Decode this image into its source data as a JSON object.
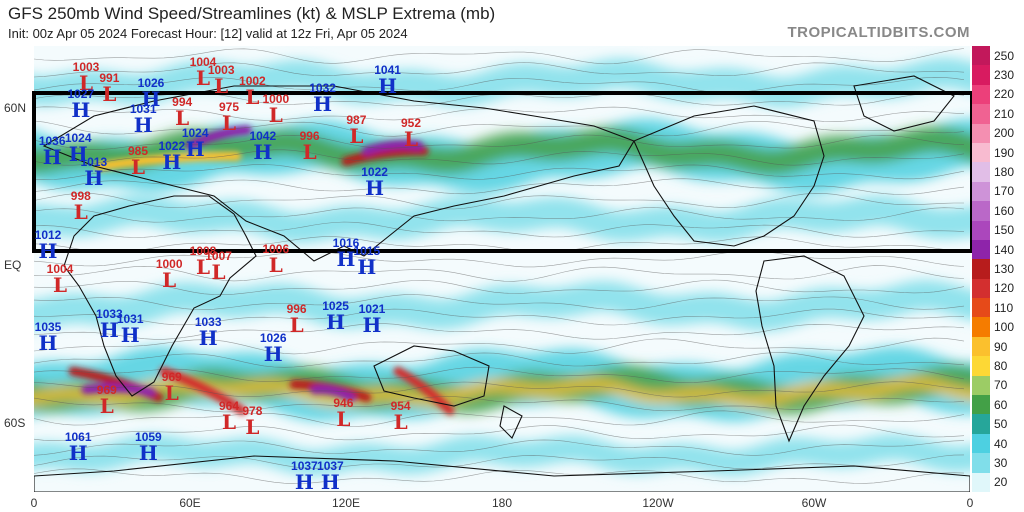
{
  "title": "GFS 250mb Wind Speed/Streamlines (kt) & MSLP Extrema (mb)",
  "subtitle": "Init: 00z Apr 05 2024   Forecast Hour: [12]   valid at 12z Fri, Apr 05 2024",
  "brand": "TROPICALTIDBITS.COM",
  "lat_labels": [
    "60N",
    "EQ",
    "60S"
  ],
  "lon_labels": [
    "0",
    "60E",
    "120E",
    "180",
    "120W",
    "60W",
    "0"
  ],
  "colorbar": {
    "labels": [
      "250",
      "230",
      "220",
      "210",
      "200",
      "190",
      "180",
      "170",
      "160",
      "150",
      "140",
      "130",
      "120",
      "110",
      "100",
      "90",
      "80",
      "70",
      "60",
      "50",
      "40",
      "30",
      "20"
    ],
    "colors": [
      "#c2185b",
      "#d81b60",
      "#ec407a",
      "#f06292",
      "#f48fb1",
      "#f8bbd0",
      "#e1bee7",
      "#ce93d8",
      "#ba68c8",
      "#ab47bc",
      "#8e24aa",
      "#b71c1c",
      "#d32f2f",
      "#e64a19",
      "#f57c00",
      "#fbc02d",
      "#fdd835",
      "#9ccc65",
      "#43a047",
      "#26a69a",
      "#4dd0e1",
      "#80deea",
      "#e0f7fa"
    ]
  },
  "pressure_extrema": [
    {
      "type": "L",
      "value": "1003",
      "lon": 20,
      "lat": 72
    },
    {
      "type": "L",
      "value": "991",
      "lon": 29,
      "lat": 68
    },
    {
      "type": "H",
      "value": "1026",
      "lon": 45,
      "lat": 66
    },
    {
      "type": "L",
      "value": "1004",
      "lon": 65,
      "lat": 74
    },
    {
      "type": "L",
      "value": "1003",
      "lon": 72,
      "lat": 71
    },
    {
      "type": "H",
      "value": "1027",
      "lon": 18,
      "lat": 62
    },
    {
      "type": "H",
      "value": "1031",
      "lon": 42,
      "lat": 56
    },
    {
      "type": "L",
      "value": "994",
      "lon": 57,
      "lat": 59
    },
    {
      "type": "L",
      "value": "975",
      "lon": 75,
      "lat": 57
    },
    {
      "type": "L",
      "value": "1002",
      "lon": 84,
      "lat": 67
    },
    {
      "type": "L",
      "value": "1000",
      "lon": 93,
      "lat": 60
    },
    {
      "type": "H",
      "value": "1032",
      "lon": 111,
      "lat": 64
    },
    {
      "type": "H",
      "value": "1041",
      "lon": 136,
      "lat": 71
    },
    {
      "type": "H",
      "value": "1036",
      "lon": 7,
      "lat": 44
    },
    {
      "type": "H",
      "value": "1024",
      "lon": 17,
      "lat": 45
    },
    {
      "type": "H",
      "value": "1022",
      "lon": 53,
      "lat": 42
    },
    {
      "type": "H",
      "value": "1024",
      "lon": 62,
      "lat": 47
    },
    {
      "type": "H",
      "value": "1042",
      "lon": 88,
      "lat": 46
    },
    {
      "type": "L",
      "value": "996",
      "lon": 106,
      "lat": 46
    },
    {
      "type": "L",
      "value": "987",
      "lon": 124,
      "lat": 52
    },
    {
      "type": "L",
      "value": "952",
      "lon": 145,
      "lat": 51
    },
    {
      "type": "H",
      "value": "1013",
      "lon": 23,
      "lat": 36
    },
    {
      "type": "L",
      "value": "985",
      "lon": 40,
      "lat": 40
    },
    {
      "type": "H",
      "value": "1022",
      "lon": 131,
      "lat": 32
    },
    {
      "type": "L",
      "value": "998",
      "lon": 18,
      "lat": 23
    },
    {
      "type": "H",
      "value": "1012",
      "lon": 3,
      "lat": 8
    },
    {
      "type": "L",
      "value": "1006",
      "lon": 93,
      "lat": 3
    },
    {
      "type": "L",
      "value": "1008",
      "lon": 65,
      "lat": 2
    },
    {
      "type": "L",
      "value": "1007",
      "lon": 71,
      "lat": 0
    },
    {
      "type": "L",
      "value": "1000",
      "lon": 52,
      "lat": -3
    },
    {
      "type": "H",
      "value": "1016",
      "lon": 120,
      "lat": 5
    },
    {
      "type": "H",
      "value": "1015",
      "lon": 128,
      "lat": 2
    },
    {
      "type": "L",
      "value": "1004",
      "lon": 10,
      "lat": -5
    },
    {
      "type": "H",
      "value": "1025",
      "lon": 116,
      "lat": -19
    },
    {
      "type": "H",
      "value": "1021",
      "lon": 130,
      "lat": -20
    },
    {
      "type": "L",
      "value": "996",
      "lon": 101,
      "lat": -20
    },
    {
      "type": "H",
      "value": "1035",
      "lon": 0,
      "lat": -27
    },
    {
      "type": "H",
      "value": "1033",
      "lon": 29,
      "lat": -22
    },
    {
      "type": "H",
      "value": "1031",
      "lon": 37,
      "lat": -24
    },
    {
      "type": "H",
      "value": "1033",
      "lon": 67,
      "lat": -25
    },
    {
      "type": "H",
      "value": "1026",
      "lon": 92,
      "lat": -31
    },
    {
      "type": "L",
      "value": "969",
      "lon": 53,
      "lat": -46
    },
    {
      "type": "L",
      "value": "969",
      "lon": 28,
      "lat": -51
    },
    {
      "type": "L",
      "value": "964",
      "lon": 75,
      "lat": -57
    },
    {
      "type": "L",
      "value": "978",
      "lon": 84,
      "lat": -59
    },
    {
      "type": "L",
      "value": "946",
      "lon": 119,
      "lat": -56
    },
    {
      "type": "L",
      "value": "954",
      "lon": 141,
      "lat": -57
    },
    {
      "type": "H",
      "value": "1061",
      "lon": 17,
      "lat": -69
    },
    {
      "type": "H",
      "value": "1059",
      "lon": 44,
      "lat": -69
    },
    {
      "type": "H",
      "value": "1037",
      "lon": 104,
      "lat": -80
    },
    {
      "type": "H",
      "value": "1037",
      "lon": 114,
      "lat": -80
    }
  ],
  "jet_streaks": [
    {
      "lon0": 25,
      "lat0": 38,
      "lon1": 78,
      "lat1": 42,
      "color": "#fbc02d"
    },
    {
      "lon0": 60,
      "lat0": 46,
      "lon1": 82,
      "lat1": 52,
      "color": "#8e24aa"
    },
    {
      "lon0": 120,
      "lat0": 40,
      "lon1": 150,
      "lat1": 44,
      "color": "#b71c1c"
    },
    {
      "lon0": 128,
      "lat0": 44,
      "lon1": 148,
      "lat1": 46,
      "color": "#8e24aa"
    },
    {
      "lon0": 15,
      "lat0": -40,
      "lon1": 48,
      "lat1": -50,
      "color": "#b71c1c"
    },
    {
      "lon0": 20,
      "lat0": -47,
      "lon1": 45,
      "lat1": -48,
      "color": "#8e24aa"
    },
    {
      "lon0": 50,
      "lat0": -40,
      "lon1": 80,
      "lat1": -55,
      "color": "#d32f2f"
    },
    {
      "lon0": 100,
      "lat0": -45,
      "lon1": 128,
      "lat1": -50,
      "color": "#b71c1c"
    },
    {
      "lon0": 108,
      "lat0": -47,
      "lon1": 122,
      "lat1": -50,
      "color": "#8e24aa"
    },
    {
      "lon0": 140,
      "lat0": -40,
      "lon1": 160,
      "lat1": -55,
      "color": "#d32f2f"
    }
  ]
}
